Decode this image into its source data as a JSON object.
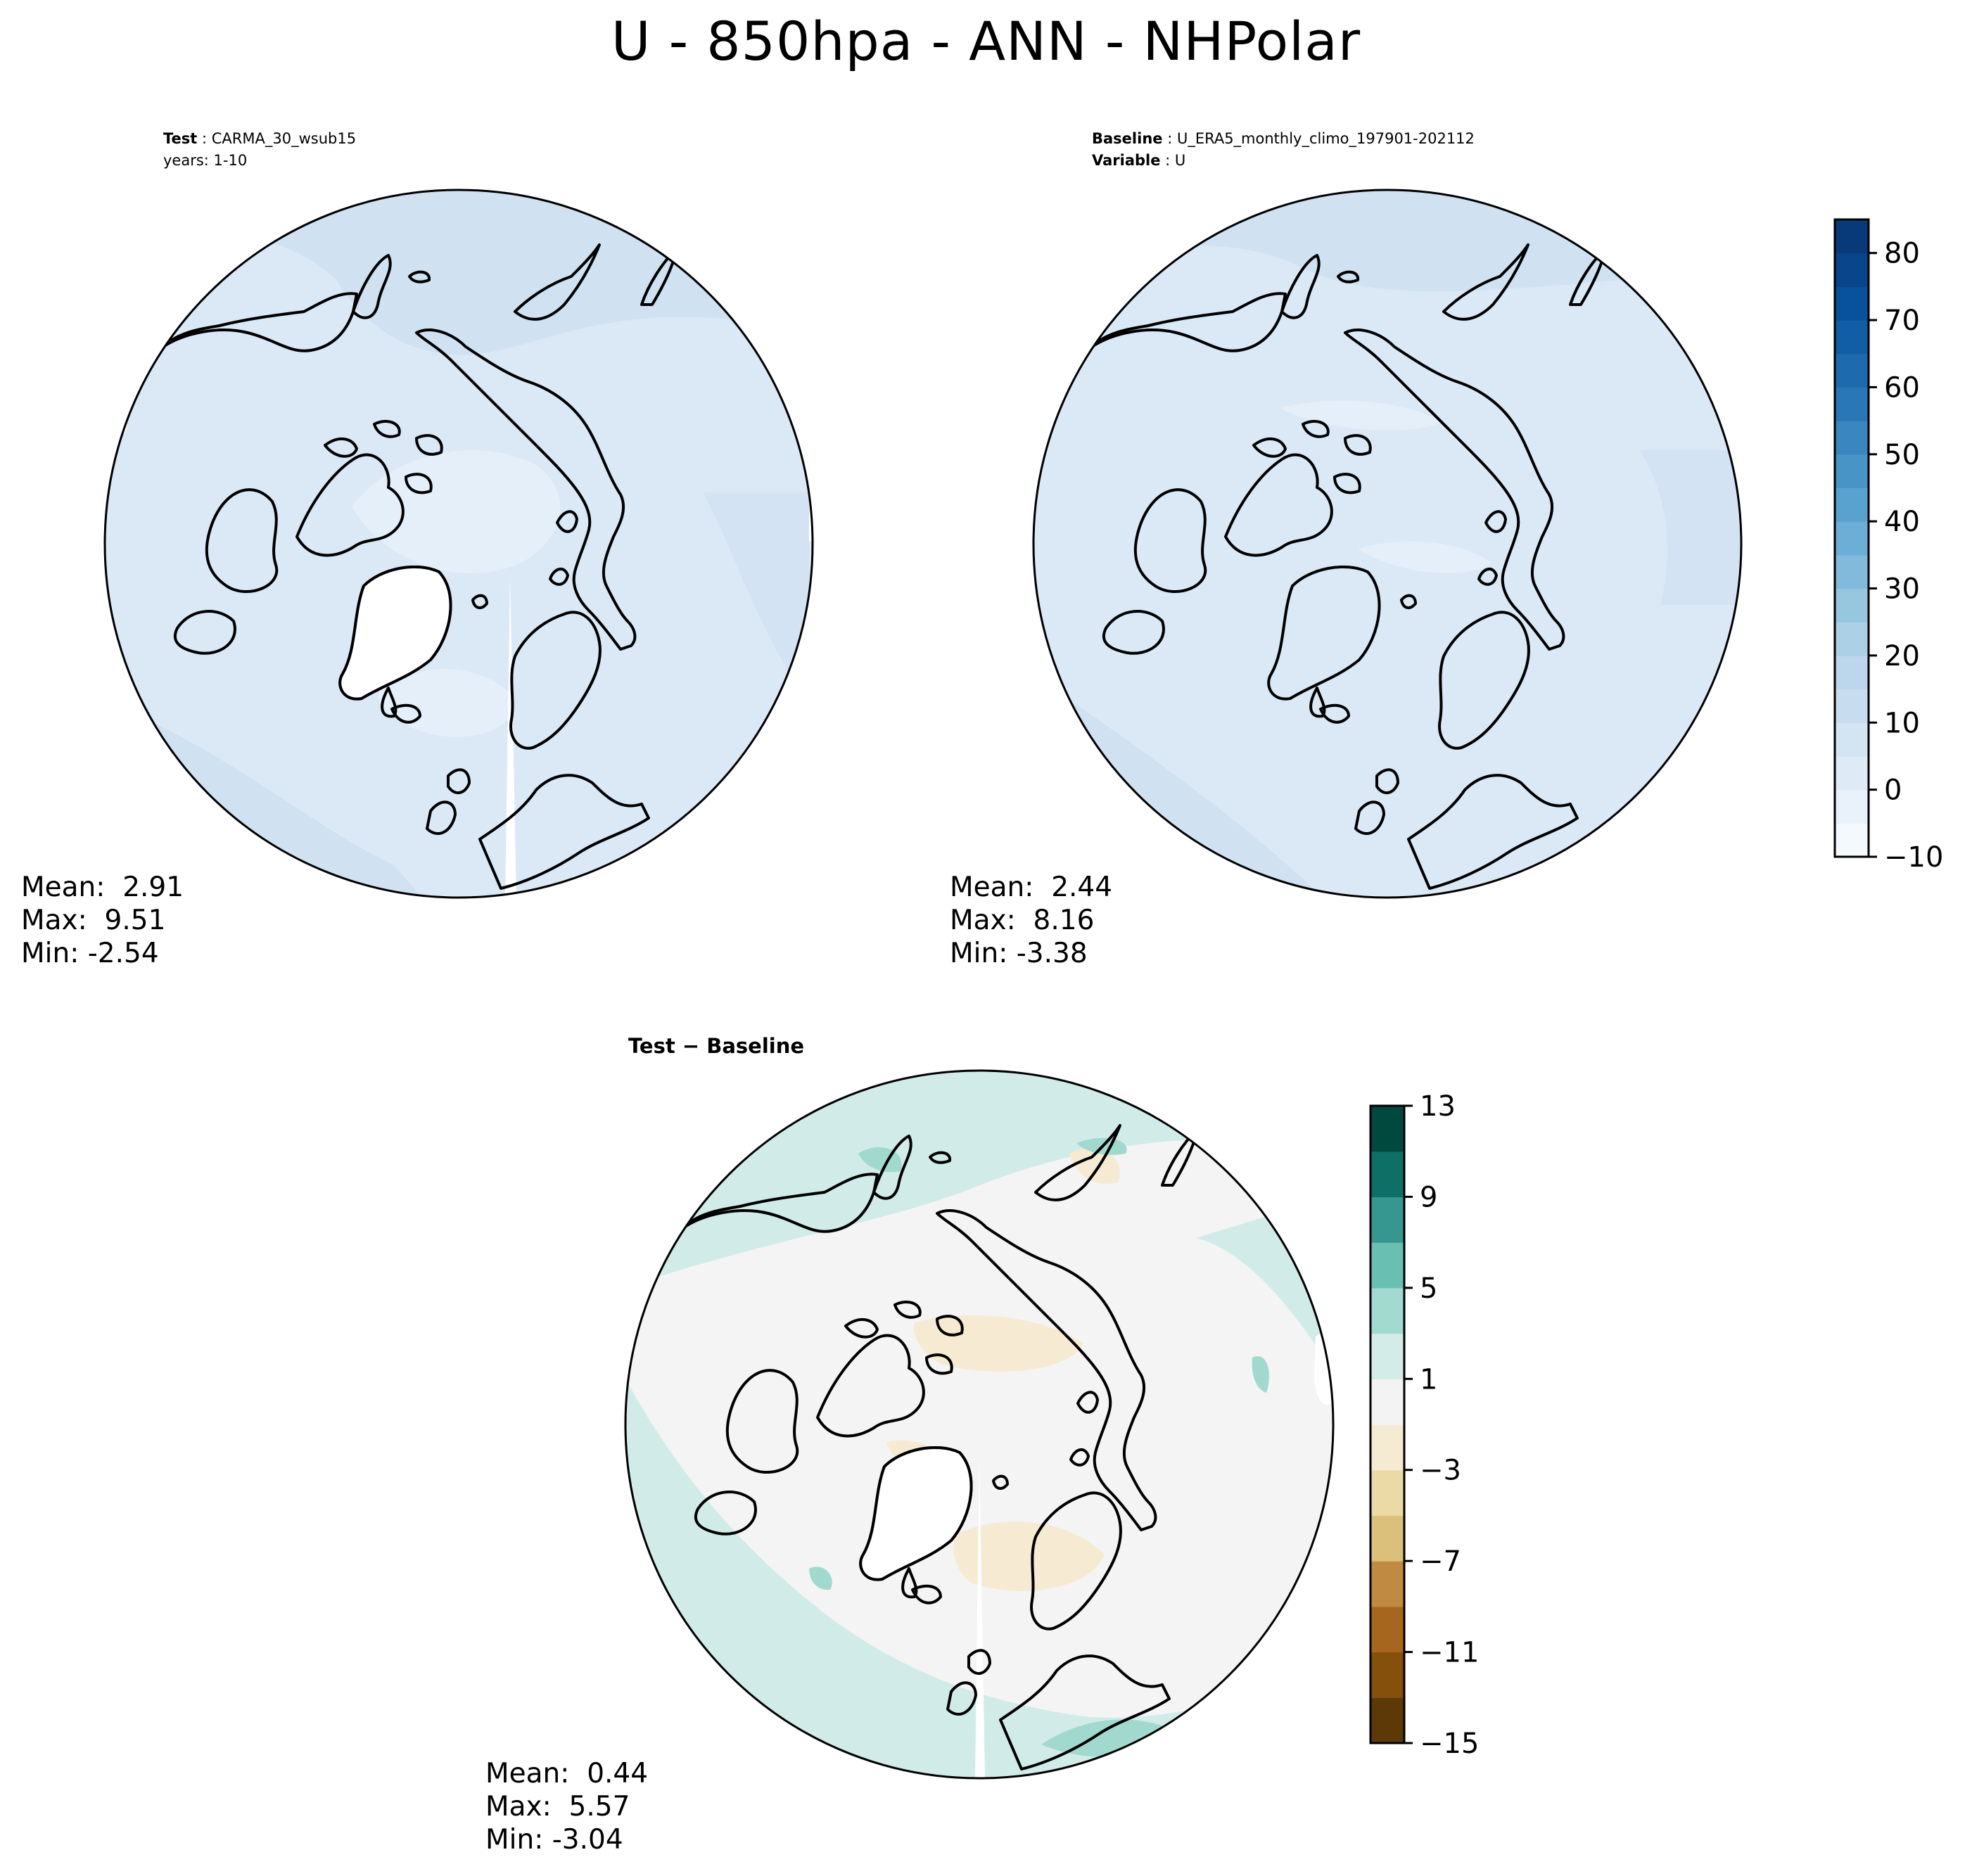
{
  "figure": {
    "title": "U - 850hpa - ANN - NHPolar"
  },
  "test_panel": {
    "label_bold": "Test",
    "label_value": "CARMA_30_wsub15",
    "years": "years: 1-10",
    "stats": {
      "mean": "Mean:  2.91",
      "max": "Max:  9.51",
      "min": "Min: -2.54"
    },
    "field_colors": [
      "#d0e1f2",
      "#dbe8f6",
      "#e5eff9",
      "#ffffff"
    ]
  },
  "baseline_panel": {
    "label_bold": "Baseline",
    "label_value": "U_ERA5_monthly_climo_197901-202112",
    "variable_bold": "Variable",
    "variable_value": "U",
    "stats": {
      "mean": "Mean:  2.44",
      "max": "Max:  8.16",
      "min": "Min: -3.38"
    },
    "field_colors": [
      "#d0e1f2",
      "#dbe8f6",
      "#e5eff9"
    ]
  },
  "diff_panel": {
    "title": "Test − Baseline",
    "stats": {
      "mean": "Mean:  0.44",
      "max": "Max:  5.57",
      "min": "Min: -3.04"
    },
    "field_colors": [
      "#d1ece8",
      "#f3f4f3",
      "#f6ebd2",
      "#a2d9ce"
    ]
  },
  "colorbar_main": {
    "colormap": "Blues",
    "min": -10,
    "max": 85,
    "ticks": [
      -10,
      0,
      10,
      20,
      30,
      40,
      50,
      60,
      70,
      80
    ],
    "tick_labels": [
      "−10",
      "0",
      "10",
      "20",
      "30",
      "40",
      "50",
      "60",
      "70",
      "80"
    ],
    "levels": 19,
    "colors": [
      "#f4f9fe",
      "#e9f2fb",
      "#deebf7",
      "#d3e4f3",
      "#c8dcf0",
      "#bcd6ec",
      "#acd0e6",
      "#97c6df",
      "#82badb",
      "#6caed6",
      "#59a1cf",
      "#4994c7",
      "#3986c0",
      "#2a77b8",
      "#1d6aaf",
      "#125ea6",
      "#08519c",
      "#08458a",
      "#083a7a"
    ]
  },
  "colorbar_diff": {
    "colormap": "BrBG",
    "min": -15,
    "max": 13,
    "ticks": [
      -15,
      -11,
      -7,
      -3,
      1,
      5,
      9,
      13
    ],
    "tick_labels": [
      "−15",
      "−11",
      "−7",
      "−3",
      "1",
      "5",
      "9",
      "13"
    ],
    "levels": 14,
    "colors": [
      "#5d3908",
      "#84500b",
      "#a6661d",
      "#c18a42",
      "#dbc07b",
      "#ebd9a6",
      "#f4ebd2",
      "#f2f3f2",
      "#d3ece8",
      "#a2dad0",
      "#6abfb3",
      "#35978f",
      "#0d6f66",
      "#01493f"
    ]
  }
}
